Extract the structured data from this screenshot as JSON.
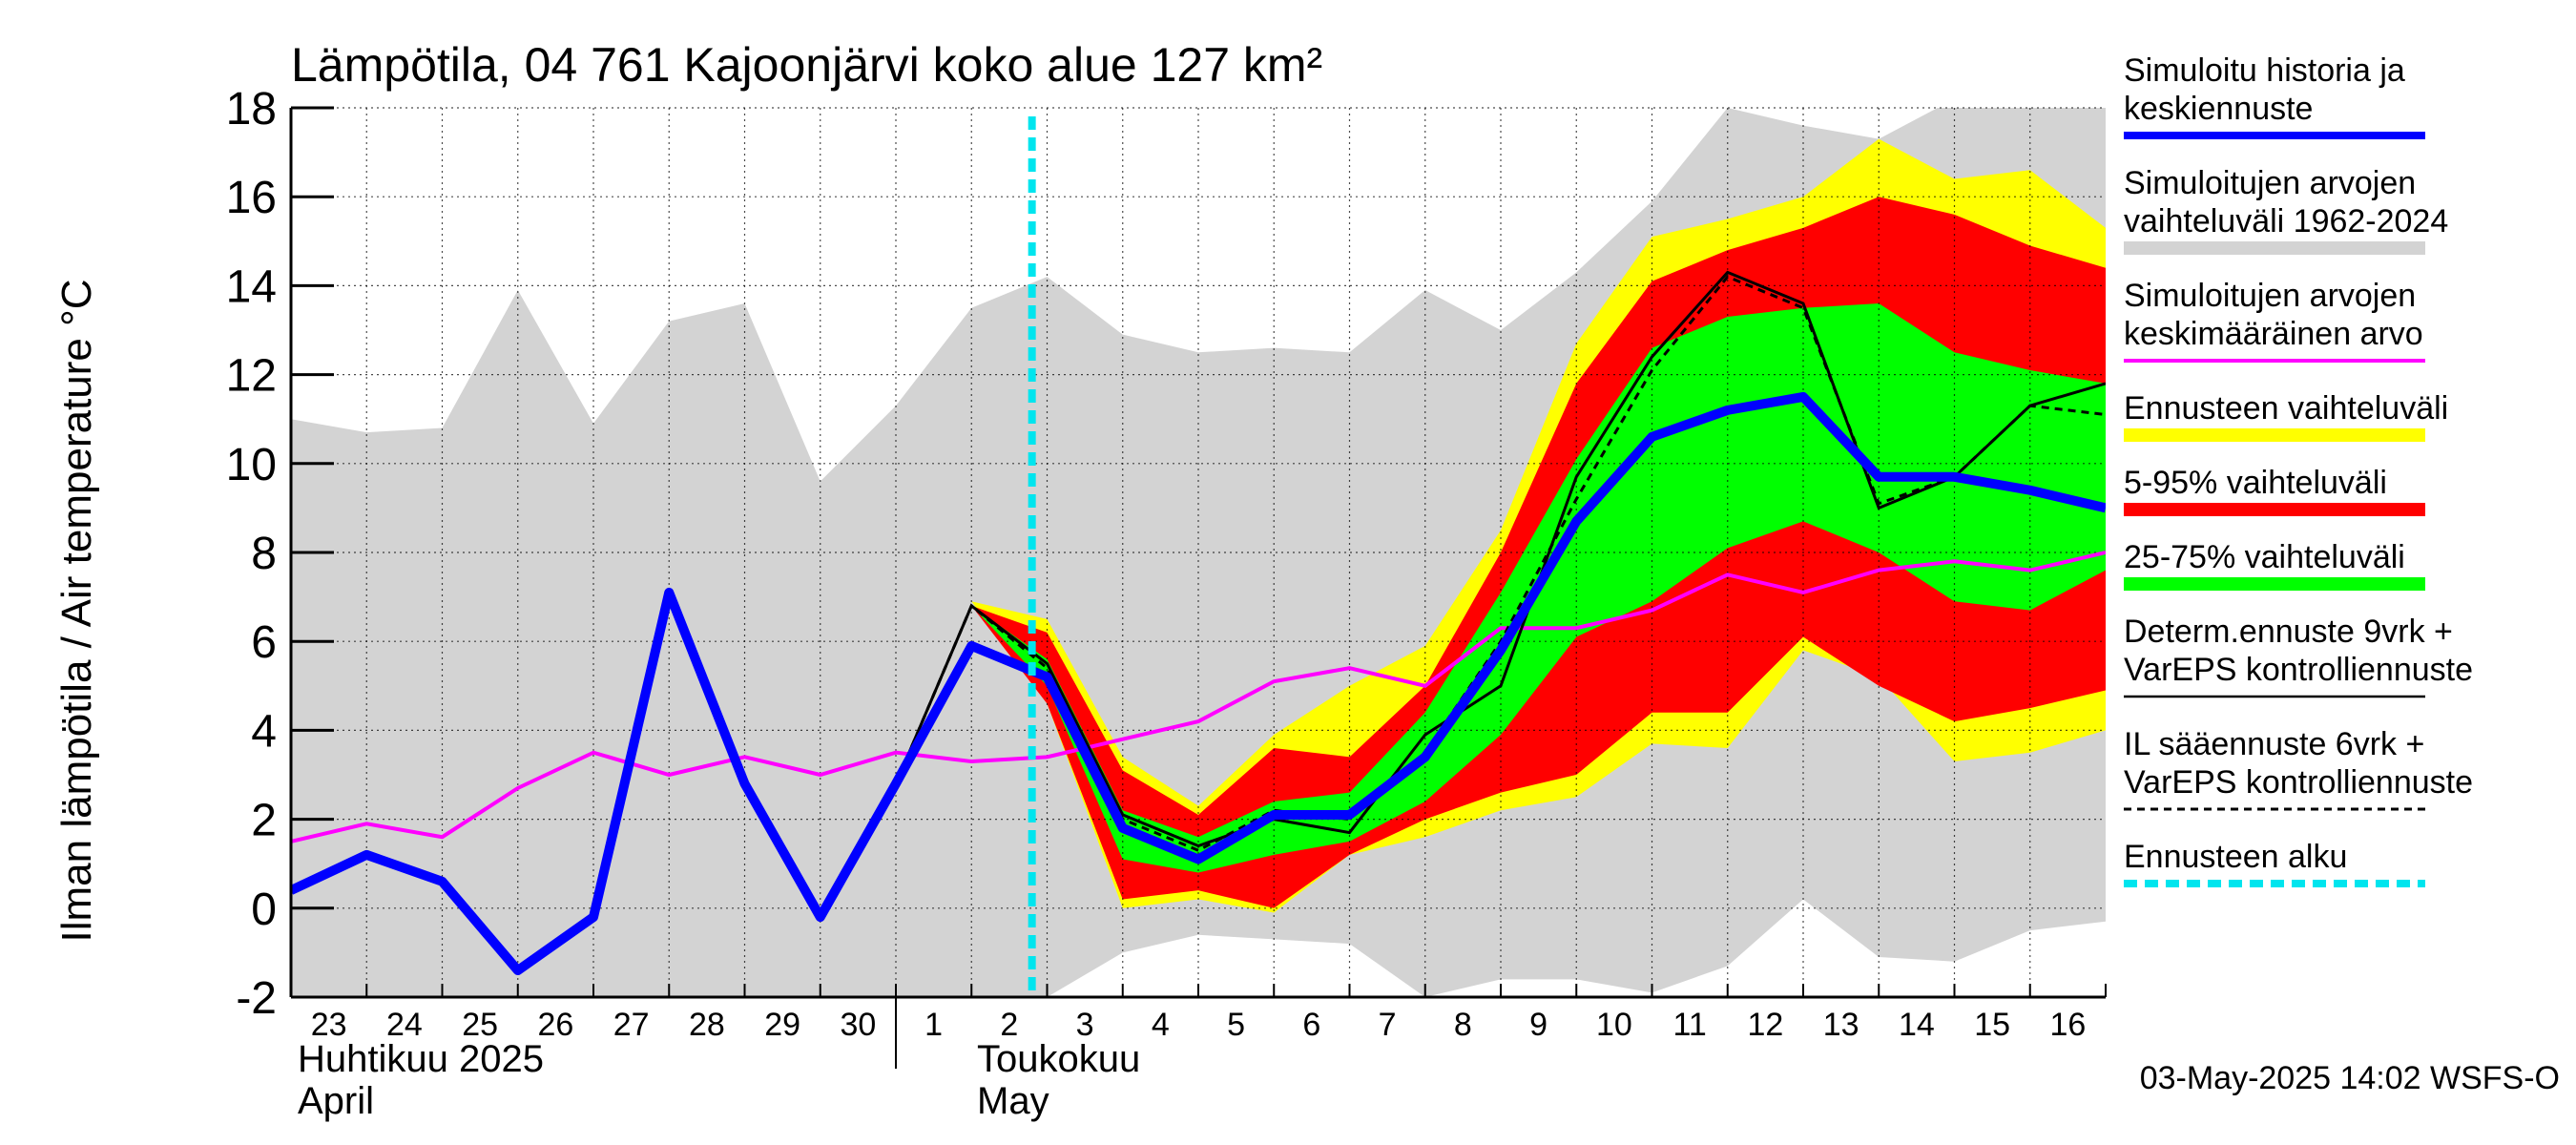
{
  "chart_data": {
    "type": "area",
    "title": "Lämpötila, 04 761 Kajoonjärvi koko alue 127 km²",
    "ylabel": "Ilman lämpötila / Air temperature   °C",
    "ylim": [
      -2,
      18
    ],
    "yticks": [
      "-2",
      "0",
      "2",
      "4",
      "6",
      "8",
      "10",
      "12",
      "14",
      "16",
      "18"
    ],
    "x_days": [
      "23",
      "24",
      "25",
      "26",
      "27",
      "28",
      "29",
      "30",
      "1",
      "2",
      "3",
      "4",
      "5",
      "6",
      "7",
      "8",
      "9",
      "10",
      "11",
      "12",
      "13",
      "14",
      "15",
      "16"
    ],
    "months": [
      {
        "fi": "Huhtikuu  2025",
        "en": "April"
      },
      {
        "fi": "Toukokuu",
        "en": "May"
      }
    ],
    "forecast_start_x": 9.8,
    "series": [
      {
        "name": "hist_range",
        "x": [
          0,
          1,
          2,
          3,
          4,
          5,
          6,
          7,
          8,
          9,
          10,
          11,
          12,
          13,
          14,
          15,
          16,
          17,
          18,
          19,
          20,
          21,
          22,
          23,
          24
        ],
        "upper": [
          11.0,
          10.7,
          10.8,
          13.9,
          10.9,
          13.2,
          13.6,
          9.6,
          11.3,
          13.5,
          14.2,
          12.9,
          12.5,
          12.6,
          12.5,
          13.9,
          13.0,
          14.3,
          15.9,
          18.0,
          17.6,
          17.3,
          18.2,
          18.3,
          18.4
        ],
        "lower": [
          -2,
          -2,
          -2,
          -2,
          -2,
          -2,
          -2,
          -2,
          -2,
          -2,
          -2,
          -1.0,
          -0.6,
          -0.7,
          -0.8,
          -2.0,
          -1.6,
          -1.6,
          -1.9,
          -1.3,
          0.2,
          -1.1,
          -1.2,
          -0.5,
          -0.3
        ]
      },
      {
        "name": "forecast_range",
        "x": [
          9,
          10,
          11,
          12,
          13,
          14,
          15,
          16,
          17,
          18,
          19,
          20,
          21,
          22,
          23,
          24
        ],
        "upper": [
          6.9,
          6.5,
          3.4,
          2.3,
          3.9,
          5.0,
          5.9,
          8.5,
          12.7,
          15.1,
          15.5,
          16.0,
          17.3,
          16.4,
          16.6,
          15.3
        ],
        "lower": [
          6.9,
          4.6,
          0.0,
          0.2,
          -0.1,
          1.2,
          1.6,
          2.2,
          2.5,
          3.7,
          3.6,
          5.8,
          5.2,
          3.3,
          3.5,
          4.0
        ]
      },
      {
        "name": "p5_95",
        "x": [
          9,
          10,
          11,
          12,
          13,
          14,
          15,
          16,
          17,
          18,
          19,
          20,
          21,
          22,
          23,
          24
        ],
        "upper": [
          6.8,
          6.2,
          3.1,
          2.1,
          3.6,
          3.4,
          5.0,
          8.0,
          11.8,
          14.1,
          14.8,
          15.3,
          16.0,
          15.6,
          14.9,
          14.4
        ],
        "lower": [
          6.8,
          4.6,
          0.2,
          0.4,
          0.0,
          1.2,
          2.0,
          2.6,
          3.0,
          4.4,
          4.4,
          6.1,
          5.0,
          4.2,
          4.5,
          4.9
        ]
      },
      {
        "name": "p25_75",
        "x": [
          9,
          10,
          11,
          12,
          13,
          14,
          15,
          16,
          17,
          18,
          19,
          20,
          21,
          22,
          23,
          24
        ],
        "upper": [
          6.8,
          5.6,
          2.2,
          1.6,
          2.4,
          2.6,
          4.4,
          7.1,
          10.1,
          12.6,
          13.3,
          13.5,
          13.6,
          12.5,
          12.1,
          11.8
        ],
        "lower": [
          6.8,
          5.0,
          1.1,
          0.8,
          1.2,
          1.5,
          2.4,
          3.9,
          6.1,
          6.9,
          8.1,
          8.7,
          8.0,
          6.9,
          6.7,
          7.6
        ]
      },
      {
        "name": "Simuloitujen arvojen keskimääräinen arvo",
        "color": "#ff00ff",
        "x": [
          0,
          1,
          2,
          3,
          4,
          5,
          6,
          7,
          8,
          9,
          10,
          11,
          12,
          13,
          14,
          15,
          16,
          17,
          18,
          19,
          20,
          21,
          22,
          23,
          24
        ],
        "values": [
          1.5,
          1.9,
          1.6,
          2.7,
          3.5,
          3.0,
          3.4,
          3.0,
          3.5,
          3.3,
          3.4,
          3.8,
          4.2,
          5.1,
          5.4,
          5.0,
          6.3,
          6.3,
          6.7,
          7.5,
          7.1,
          7.6,
          7.8,
          7.6,
          8.0
        ]
      },
      {
        "name": "Simuloitu historia ja keskiennuste",
        "color": "#0000ff",
        "x": [
          0,
          1,
          2,
          3,
          4,
          5,
          6,
          7,
          8,
          9,
          10,
          11,
          12,
          13,
          14,
          15,
          16,
          17,
          18,
          19,
          20,
          21,
          22,
          23,
          24
        ],
        "values": [
          0.4,
          1.2,
          0.6,
          -1.4,
          -0.2,
          7.1,
          2.8,
          -0.2,
          2.8,
          5.9,
          5.2,
          1.8,
          1.1,
          2.1,
          2.1,
          3.4,
          5.8,
          8.7,
          10.6,
          11.2,
          11.5,
          9.7,
          9.7,
          9.4,
          9.0
        ]
      },
      {
        "name": "Determ.ennuste 9vrk + VarEPS kontrolliennuste",
        "color": "#000000",
        "x": [
          8,
          9,
          10,
          11,
          12,
          13,
          14,
          15,
          16,
          17,
          18,
          19,
          20,
          21,
          22,
          23,
          24
        ],
        "values": [
          2.8,
          6.8,
          5.5,
          2.1,
          1.4,
          2.0,
          1.7,
          3.9,
          5.0,
          9.7,
          12.4,
          14.3,
          13.6,
          9.0,
          9.7,
          11.3,
          11.8
        ]
      },
      {
        "name": "IL sääennuste 6vrk + VarEPS kontrolliennuste",
        "color": "#000000",
        "x": [
          8,
          9,
          10,
          11,
          12,
          13,
          14,
          15,
          16,
          17,
          18,
          19,
          20,
          21,
          22,
          23,
          24
        ],
        "values": [
          2.8,
          6.8,
          5.4,
          2.0,
          1.3,
          2.2,
          2.0,
          3.5,
          6.0,
          9.2,
          12.1,
          14.2,
          13.5,
          9.1,
          9.7,
          11.3,
          11.1
        ]
      }
    ]
  },
  "legend": [
    {
      "lines": [
        "Simuloitu historia ja",
        "keskiennuste"
      ],
      "color": "#0000ff",
      "style": "solid-thick"
    },
    {
      "lines": [
        "Simuloitujen arvojen",
        "vaihteluväli 1962-2024"
      ],
      "color": "#d3d3d3",
      "style": "band"
    },
    {
      "lines": [
        "Simuloitujen arvojen",
        "keskimääräinen arvo"
      ],
      "color": "#ff00ff",
      "style": "solid"
    },
    {
      "lines": [
        "Ennusteen vaihteluväli"
      ],
      "color": "#ffff00",
      "style": "band"
    },
    {
      "lines": [
        "5-95% vaihteluväli"
      ],
      "color": "#ff0000",
      "style": "band"
    },
    {
      "lines": [
        "25-75% vaihteluväli"
      ],
      "color": "#00ff00",
      "style": "band"
    },
    {
      "lines": [
        "Determ.ennuste 9vrk +",
        "VarEPS kontrolliennuste"
      ],
      "color": "#000000",
      "style": "solid-thin"
    },
    {
      "lines": [
        "IL sääennuste 6vrk  +",
        "  VarEPS kontrolliennuste"
      ],
      "color": "#000000",
      "style": "dashed"
    },
    {
      "lines": [
        "Ennusteen alku"
      ],
      "color": "#00e5ee",
      "style": "dashed-thick"
    }
  ],
  "footer": "03-May-2025 14:02 WSFS-O",
  "colors": {
    "grey_band": "#d3d3d3",
    "yellow_band": "#ffff00",
    "red_band": "#ff0000",
    "green_band": "#00ff00",
    "forecast_start": "#00e5ee"
  }
}
